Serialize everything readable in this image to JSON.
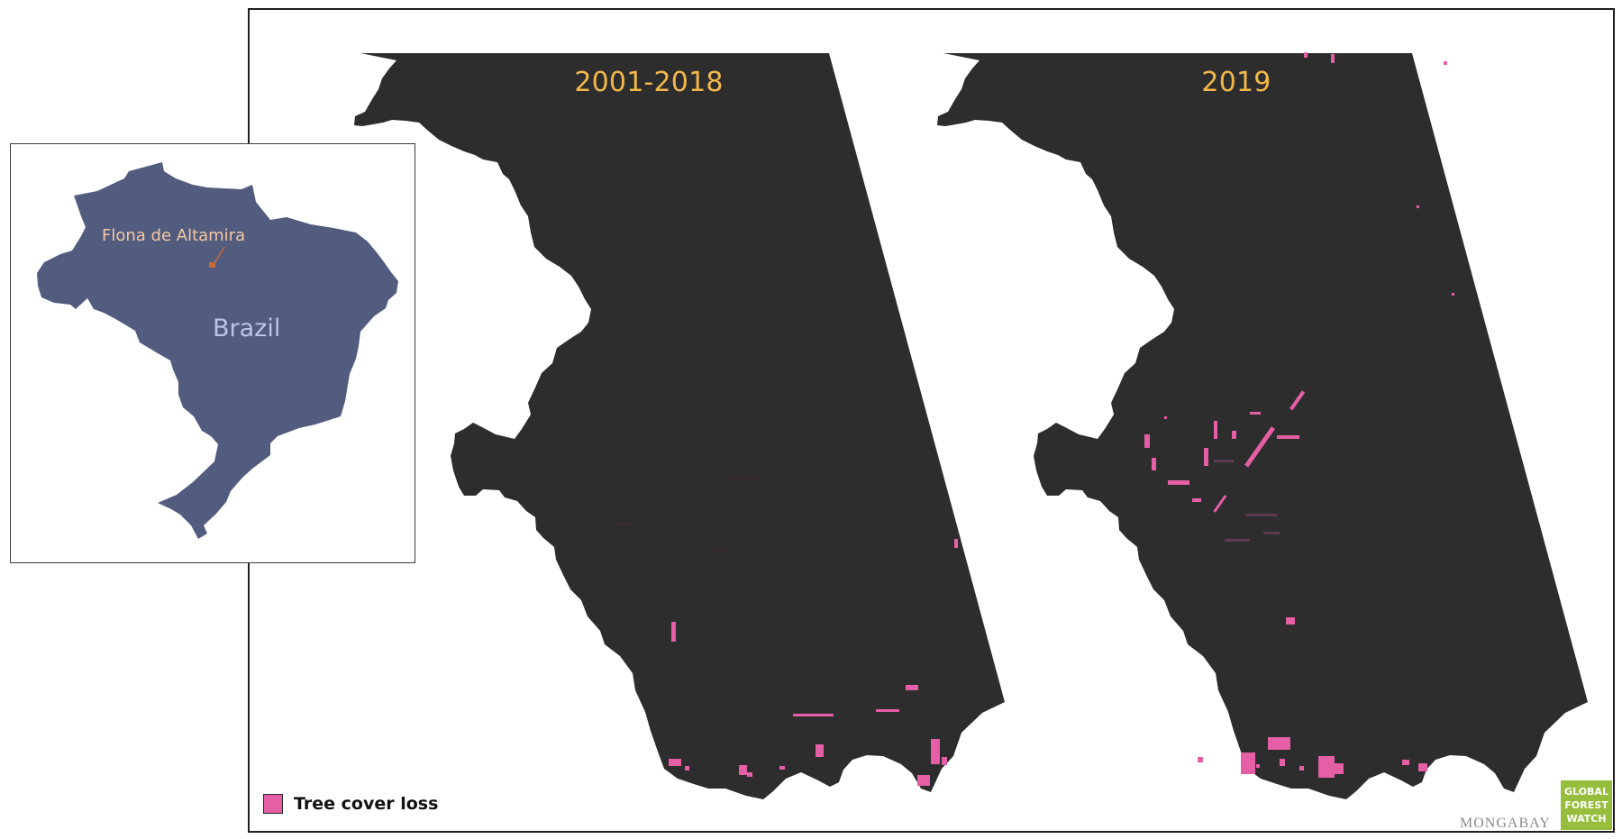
{
  "panels": [
    {
      "title": "2001-2018"
    },
    {
      "title": "2019"
    }
  ],
  "inset": {
    "country_label": "Brazil",
    "place_label": "Flona de Altamira"
  },
  "legend": {
    "label": "Tree cover loss",
    "color": "#e45fa5"
  },
  "credits": {
    "mongabay": "MONGABAY",
    "gfw": [
      "GLOBAL",
      "FOREST",
      "WATCH"
    ]
  },
  "colors": {
    "land": "#2d2d2d",
    "loss": "#e45fa5",
    "brazil": "#525c7f",
    "title": "#f2b84b",
    "gfw": "#97bd3d"
  }
}
